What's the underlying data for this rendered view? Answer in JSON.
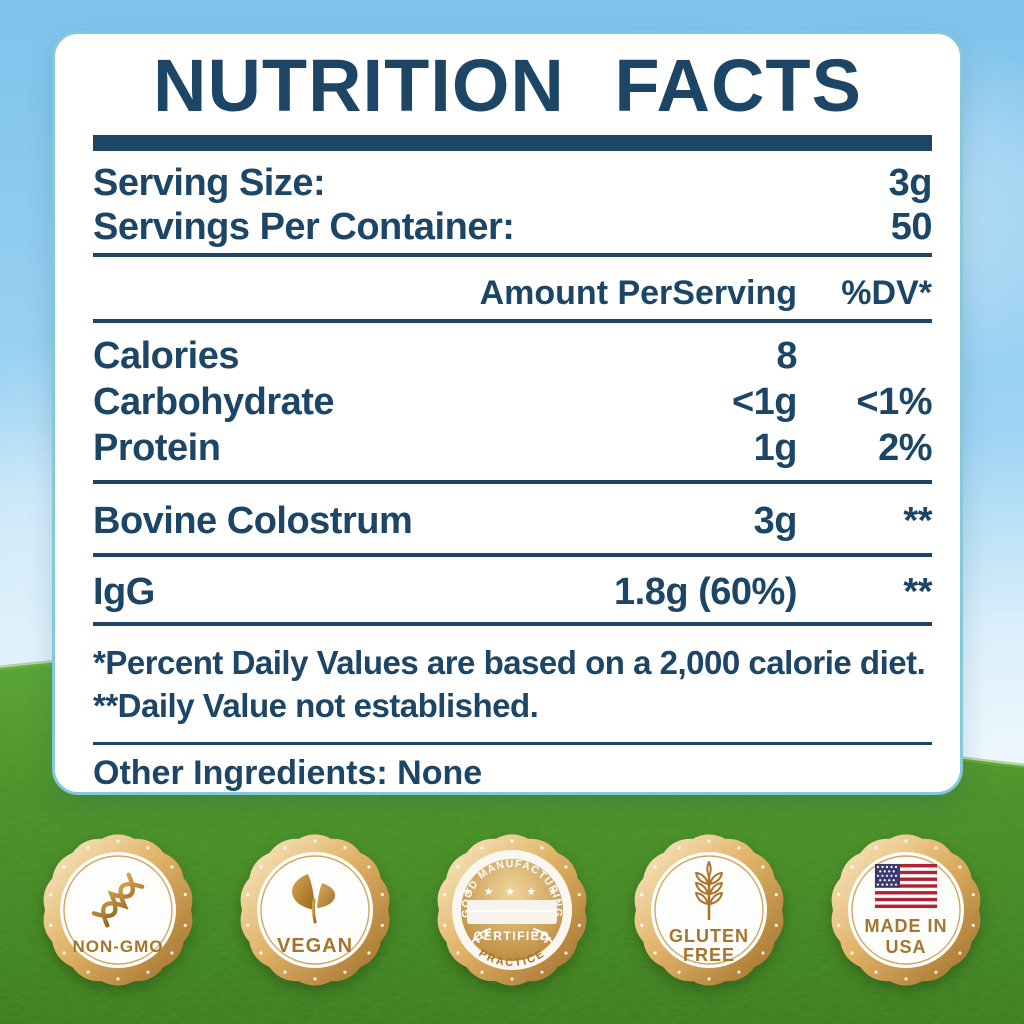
{
  "colors": {
    "navy": "#1d4565",
    "card_border": "#84c8da",
    "gold_text": "#a4752e",
    "gold_rim_light": "#f9efcf",
    "gold_rim_dark": "#9c6c26",
    "sky_top": "#7fc3ec",
    "grass": "#4a8f26",
    "flag_red": "#b22234",
    "flag_blue": "#3a3a6e"
  },
  "panel": {
    "title": "NUTRITION FACTS",
    "serving_size": {
      "label": "Serving Size:",
      "value": "3g"
    },
    "servings_per_container": {
      "label": "Servings Per Container:",
      "value": "50"
    },
    "header": {
      "amount": "Amount PerServing",
      "dv": "%DV*"
    },
    "rows": [
      {
        "label": "Calories",
        "amount": "8",
        "dv": ""
      },
      {
        "label": "Carbohydrate",
        "amount": "<1g",
        "dv": "<1%"
      },
      {
        "label": "Protein",
        "amount": "1g",
        "dv": "2%"
      },
      {
        "label": "Bovine Colostrum",
        "amount": "3g",
        "dv": "**"
      },
      {
        "label": "IgG",
        "amount": "1.8g (60%)",
        "dv": "**"
      }
    ],
    "footnotes": [
      "*Percent Daily Values are based on a 2,000 calorie diet.",
      "**Daily Value not established."
    ],
    "other_ingredients": "Other Ingredients: None"
  },
  "badges": {
    "non_gmo": {
      "label": "NON-GMO",
      "icon": "dna-icon"
    },
    "vegan": {
      "label": "VEGAN",
      "icon": "leaf-icon"
    },
    "gmp": {
      "arc_top": "GOOD MANUFACTURING",
      "stars": "★ ★ ★ ★ ★",
      "certified": "CERTIFIED",
      "arc_bottom": "PRACTICE",
      "icon": "gmp-seal-icon"
    },
    "gluten_free": {
      "line1": "GLUTEN",
      "line2": "FREE",
      "icon": "wheat-icon"
    },
    "made_in_usa": {
      "line1": "MADE IN",
      "line2": "USA",
      "icon": "usa-flag-icon"
    }
  }
}
